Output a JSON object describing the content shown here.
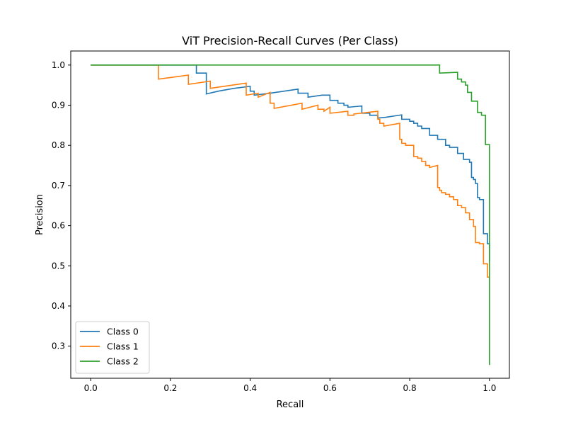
{
  "chart_data": {
    "type": "line",
    "title": "ViT Precision-Recall Curves (Per Class)",
    "xlabel": "Recall",
    "ylabel": "Precision",
    "xlim": [
      -0.05,
      1.05
    ],
    "ylim": [
      0.22,
      1.035
    ],
    "xticks": [
      0.0,
      0.2,
      0.4,
      0.6,
      0.8,
      1.0
    ],
    "xtick_labels": [
      "0.0",
      "0.2",
      "0.4",
      "0.6",
      "0.8",
      "1.0"
    ],
    "yticks": [
      0.3,
      0.4,
      0.5,
      0.6,
      0.7,
      0.8,
      0.9,
      1.0
    ],
    "ytick_labels": [
      "0.3",
      "0.4",
      "0.5",
      "0.6",
      "0.7",
      "0.8",
      "0.9",
      "1.0"
    ],
    "grid": false,
    "legend_position": "lower-left",
    "series": [
      {
        "name": "Class 0",
        "color": "#1f77b4",
        "x": [
          0.0,
          0.265,
          0.265,
          0.29,
          0.29,
          0.32,
          0.36,
          0.4,
          0.4,
          0.41,
          0.41,
          0.45,
          0.52,
          0.52,
          0.545,
          0.545,
          0.58,
          0.6,
          0.6,
          0.62,
          0.62,
          0.635,
          0.635,
          0.645,
          0.645,
          0.68,
          0.68,
          0.7,
          0.7,
          0.72,
          0.72,
          0.74,
          0.78,
          0.78,
          0.8,
          0.8,
          0.81,
          0.81,
          0.82,
          0.82,
          0.83,
          0.83,
          0.85,
          0.85,
          0.87,
          0.87,
          0.89,
          0.89,
          0.9,
          0.9,
          0.92,
          0.92,
          0.935,
          0.935,
          0.95,
          0.95,
          0.955,
          0.955,
          0.96,
          0.96,
          0.965,
          0.965,
          0.97,
          0.97,
          0.975,
          0.975,
          0.985,
          0.985,
          0.995,
          0.995,
          1.0,
          1.0
        ],
        "y": [
          1.0,
          1.0,
          0.98,
          0.98,
          0.928,
          0.935,
          0.942,
          0.947,
          0.935,
          0.935,
          0.925,
          0.93,
          0.94,
          0.93,
          0.93,
          0.92,
          0.925,
          0.925,
          0.912,
          0.912,
          0.905,
          0.905,
          0.9,
          0.9,
          0.895,
          0.898,
          0.88,
          0.88,
          0.875,
          0.875,
          0.868,
          0.87,
          0.876,
          0.865,
          0.865,
          0.86,
          0.86,
          0.855,
          0.855,
          0.848,
          0.848,
          0.842,
          0.842,
          0.825,
          0.825,
          0.815,
          0.815,
          0.8,
          0.8,
          0.795,
          0.795,
          0.78,
          0.78,
          0.765,
          0.765,
          0.758,
          0.758,
          0.72,
          0.72,
          0.715,
          0.715,
          0.705,
          0.705,
          0.67,
          0.67,
          0.665,
          0.665,
          0.58,
          0.58,
          0.555,
          0.555,
          0.512
        ]
      },
      {
        "name": "Class 1",
        "color": "#ff7f0e",
        "x": [
          0.0,
          0.17,
          0.17,
          0.245,
          0.245,
          0.3,
          0.3,
          0.39,
          0.39,
          0.42,
          0.42,
          0.45,
          0.45,
          0.46,
          0.46,
          0.53,
          0.53,
          0.57,
          0.57,
          0.585,
          0.585,
          0.6,
          0.6,
          0.645,
          0.645,
          0.66,
          0.66,
          0.72,
          0.72,
          0.725,
          0.725,
          0.735,
          0.735,
          0.775,
          0.775,
          0.78,
          0.78,
          0.79,
          0.79,
          0.81,
          0.81,
          0.82,
          0.82,
          0.83,
          0.83,
          0.84,
          0.84,
          0.85,
          0.85,
          0.87,
          0.87,
          0.875,
          0.875,
          0.88,
          0.88,
          0.89,
          0.89,
          0.9,
          0.9,
          0.91,
          0.91,
          0.92,
          0.92,
          0.93,
          0.93,
          0.94,
          0.94,
          0.95,
          0.95,
          0.96,
          0.96,
          0.965,
          0.965,
          0.975,
          0.975,
          0.985,
          0.985,
          0.995,
          0.995,
          1.0
        ],
        "y": [
          1.0,
          1.0,
          0.965,
          0.975,
          0.952,
          0.96,
          0.942,
          0.955,
          0.925,
          0.93,
          0.92,
          0.932,
          0.905,
          0.905,
          0.892,
          0.905,
          0.89,
          0.9,
          0.89,
          0.89,
          0.885,
          0.895,
          0.88,
          0.885,
          0.875,
          0.875,
          0.878,
          0.885,
          0.865,
          0.865,
          0.855,
          0.855,
          0.848,
          0.855,
          0.815,
          0.815,
          0.805,
          0.805,
          0.8,
          0.8,
          0.772,
          0.772,
          0.768,
          0.768,
          0.76,
          0.76,
          0.75,
          0.75,
          0.745,
          0.75,
          0.695,
          0.695,
          0.688,
          0.688,
          0.682,
          0.682,
          0.678,
          0.678,
          0.672,
          0.672,
          0.665,
          0.665,
          0.65,
          0.65,
          0.645,
          0.645,
          0.632,
          0.632,
          0.615,
          0.615,
          0.598,
          0.598,
          0.558,
          0.558,
          0.555,
          0.555,
          0.505,
          0.505,
          0.472,
          0.472
        ]
      },
      {
        "name": "Class 2",
        "color": "#2ca02c",
        "x": [
          0.0,
          0.875,
          0.875,
          0.92,
          0.92,
          0.93,
          0.93,
          0.94,
          0.94,
          0.945,
          0.945,
          0.955,
          0.955,
          0.97,
          0.97,
          0.98,
          0.98,
          0.99,
          0.99,
          1.0,
          1.0
        ],
        "y": [
          1.0,
          1.0,
          0.98,
          0.982,
          0.965,
          0.965,
          0.958,
          0.958,
          0.95,
          0.95,
          0.932,
          0.932,
          0.91,
          0.91,
          0.882,
          0.882,
          0.875,
          0.875,
          0.802,
          0.802,
          0.253
        ]
      }
    ]
  }
}
